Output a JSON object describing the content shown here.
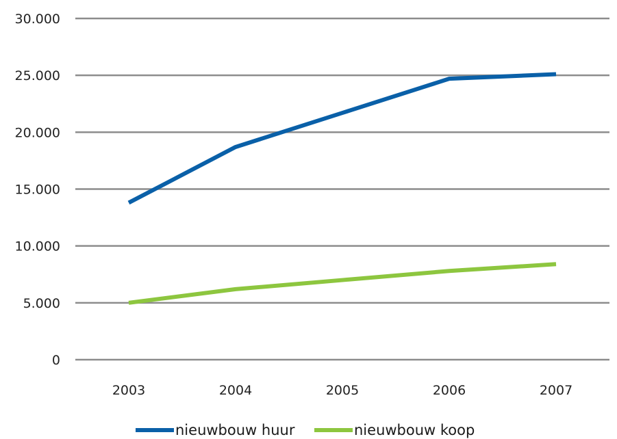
{
  "chart_data": {
    "type": "line",
    "title": "",
    "xlabel": "",
    "ylabel": "",
    "categories": [
      "2003",
      "2004",
      "2005",
      "2006",
      "2007"
    ],
    "ylim": [
      0,
      30000
    ],
    "y_ticks": [
      {
        "value": 0,
        "label": "0"
      },
      {
        "value": 5000,
        "label": "5.000"
      },
      {
        "value": 10000,
        "label": "10.000"
      },
      {
        "value": 15000,
        "label": "15.000"
      },
      {
        "value": 20000,
        "label": "20.000"
      },
      {
        "value": 25000,
        "label": "25.000"
      },
      {
        "value": 30000,
        "label": "30.000"
      }
    ],
    "grid": true,
    "legend_position": "bottom",
    "series": [
      {
        "name": "nieuwbouw huur",
        "color": "#0a60a8",
        "values": [
          13800,
          18700,
          21700,
          24700,
          25100
        ]
      },
      {
        "name": "nieuwbouw koop",
        "color": "#8dc63f",
        "values": [
          5000,
          6200,
          7000,
          7800,
          8400
        ]
      }
    ]
  }
}
